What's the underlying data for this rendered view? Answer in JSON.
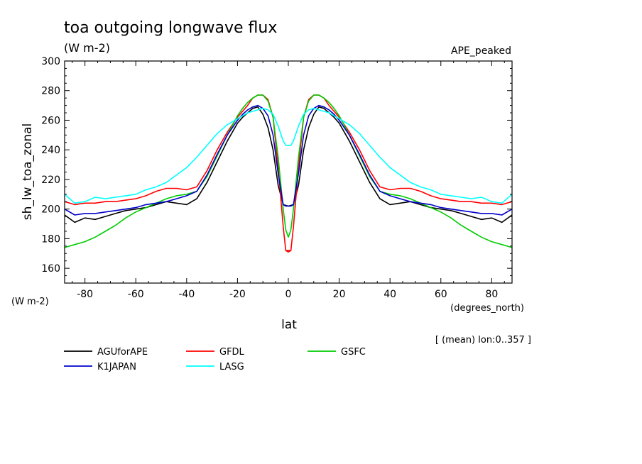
{
  "chart_data": {
    "type": "line",
    "title": "toa outgoing longwave flux",
    "subtitle": "(W m-2)",
    "experiment": "APE_peaked",
    "ylabel": "sh_lw_toa_zonal",
    "yunits": "(W m-2)",
    "xlabel": "lat",
    "xunits": "(degrees_north)",
    "note": "[ (mean) lon:0..357 ]",
    "xlim": [
      -88,
      88
    ],
    "ylim": [
      150,
      300
    ],
    "x_ticks": [
      -80,
      -60,
      -40,
      -20,
      0,
      20,
      40,
      60,
      80
    ],
    "x_ticklabels": [
      "-80",
      "-60",
      "-40",
      "-20",
      "0",
      "20",
      "40",
      "60",
      "80"
    ],
    "y_ticks": [
      160,
      180,
      200,
      220,
      240,
      260,
      280,
      300
    ],
    "y_ticklabels": [
      "160",
      "180",
      "200",
      "220",
      "240",
      "260",
      "280",
      "300"
    ],
    "grid": false,
    "legend_position": "bottom",
    "series": [
      {
        "name": "AGUforAPE",
        "color": "#000000",
        "x": [
          0,
          2,
          4,
          6,
          8,
          10,
          12,
          14,
          16,
          18,
          20,
          24,
          28,
          32,
          36,
          40,
          44,
          48,
          52,
          56,
          60,
          64,
          68,
          72,
          76,
          80,
          84,
          88
        ],
        "y": [
          202,
          203,
          216,
          240,
          255,
          264,
          269,
          268,
          265,
          262,
          258,
          246,
          232,
          218,
          207,
          203,
          204,
          205,
          203,
          201,
          200,
          199,
          197,
          195,
          193,
          194,
          191,
          196
        ]
      },
      {
        "name": "GFDL",
        "color": "#ff0000",
        "x": [
          -1,
          0,
          1,
          2,
          4,
          6,
          8,
          10,
          12,
          14,
          16,
          18,
          20,
          24,
          28,
          32,
          36,
          40,
          44,
          48,
          52,
          56,
          60,
          64,
          68,
          72,
          76,
          80,
          84,
          88
        ],
        "y": [
          172,
          171,
          172,
          188,
          228,
          262,
          274,
          277,
          277,
          275,
          270,
          266,
          262,
          252,
          240,
          226,
          215,
          213,
          214,
          214,
          212,
          209,
          207,
          206,
          205,
          205,
          204,
          204,
          203,
          205
        ]
      },
      {
        "name": "GSFC",
        "color": "#00cc00",
        "x": [
          0,
          1,
          2,
          4,
          6,
          8,
          10,
          12,
          14,
          16,
          18,
          20,
          24,
          28,
          32,
          36,
          40,
          44,
          48,
          52,
          56,
          60,
          64,
          68,
          72,
          76,
          80,
          84,
          88
        ],
        "y": [
          181,
          186,
          200,
          235,
          262,
          273,
          277,
          277,
          275,
          272,
          268,
          263,
          250,
          236,
          222,
          212,
          210,
          209,
          207,
          204,
          201,
          198,
          194,
          189,
          185,
          181,
          178,
          176,
          174
        ]
      },
      {
        "name": "K1JAPAN",
        "color": "#0000cc",
        "x": [
          -1,
          0,
          1,
          2,
          4,
          6,
          8,
          10,
          12,
          14,
          16,
          18,
          20,
          24,
          28,
          32,
          36,
          40,
          44,
          48,
          52,
          56,
          60,
          64,
          68,
          72,
          76,
          80,
          84,
          88
        ],
        "y": [
          202,
          202,
          202,
          203,
          224,
          250,
          263,
          268,
          270,
          269,
          267,
          264,
          260,
          250,
          237,
          223,
          212,
          209,
          207,
          205,
          204,
          203,
          201,
          200,
          199,
          198,
          197,
          197,
          196,
          200
        ]
      },
      {
        "name": "LASG",
        "color": "#00ffff",
        "x": [
          0,
          1,
          2,
          4,
          6,
          8,
          10,
          12,
          14,
          16,
          18,
          20,
          24,
          28,
          32,
          36,
          40,
          44,
          48,
          52,
          56,
          60,
          64,
          68,
          72,
          76,
          80,
          84,
          88
        ],
        "y": [
          243,
          243,
          246,
          256,
          264,
          267,
          268,
          267,
          266,
          265,
          263,
          261,
          257,
          251,
          243,
          235,
          228,
          223,
          218,
          215,
          213,
          210,
          209,
          208,
          207,
          208,
          205,
          204,
          210
        ]
      }
    ]
  }
}
